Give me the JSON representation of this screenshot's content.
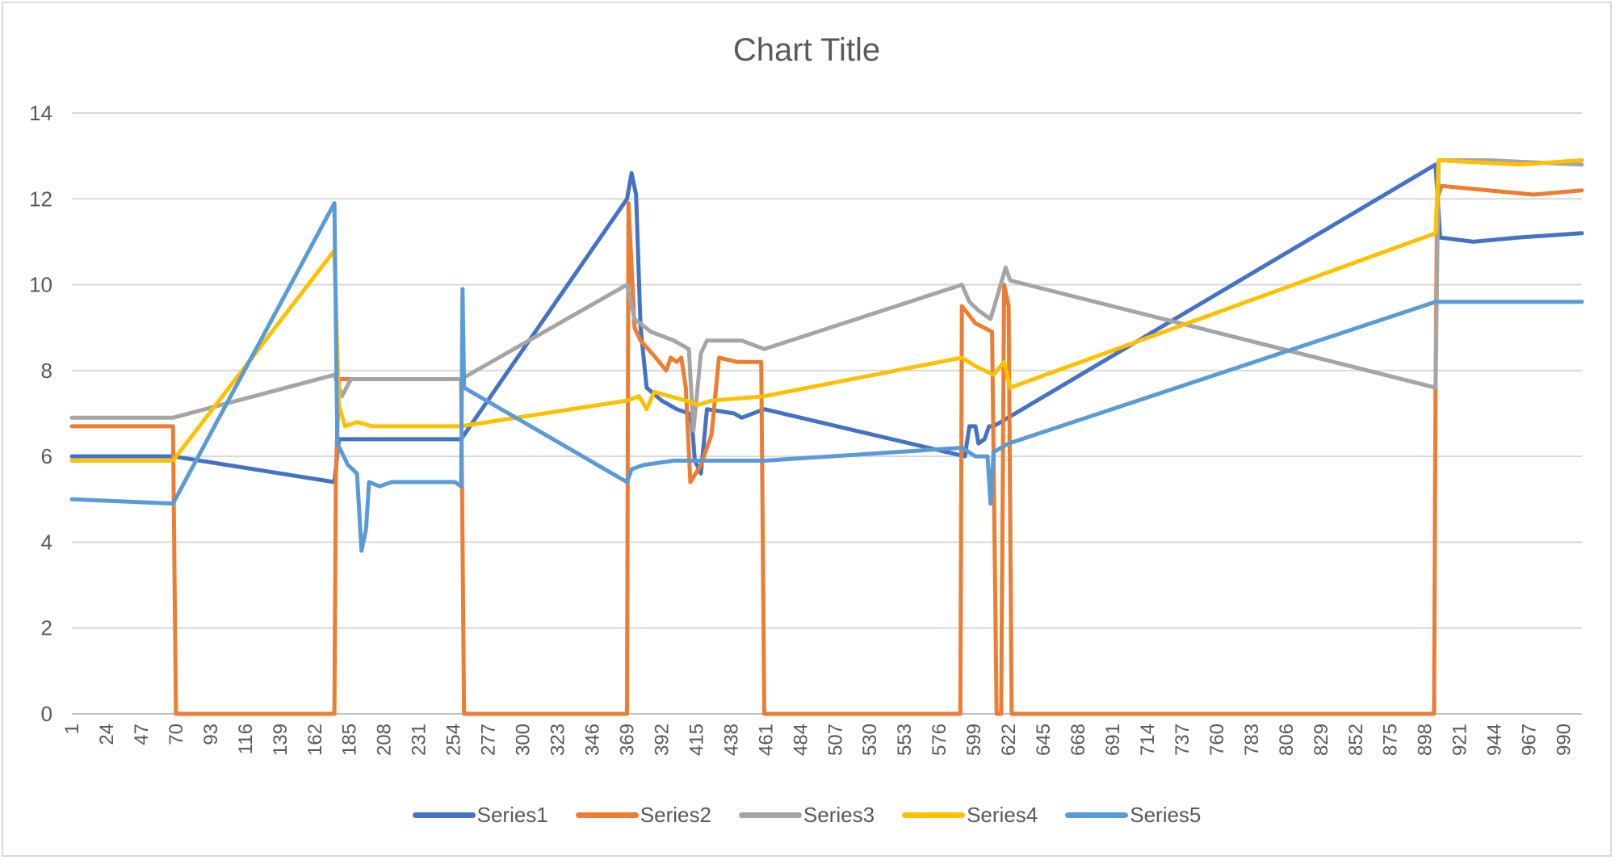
{
  "chart_data": {
    "type": "line",
    "title": "Chart Title",
    "xlabel": "",
    "ylabel": "",
    "xlim": [
      1,
      1002
    ],
    "ylim": [
      0,
      14
    ],
    "y_ticks": [
      0,
      2,
      4,
      6,
      8,
      10,
      12,
      14
    ],
    "x_tick_labels": [
      "1",
      "24",
      "47",
      "70",
      "93",
      "116",
      "139",
      "162",
      "185",
      "208",
      "231",
      "254",
      "277",
      "300",
      "323",
      "346",
      "369",
      "392",
      "415",
      "438",
      "461",
      "484",
      "507",
      "530",
      "553",
      "576",
      "599",
      "622",
      "645",
      "668",
      "691",
      "714",
      "737",
      "760",
      "783",
      "806",
      "829",
      "852",
      "875",
      "898",
      "921",
      "944",
      "967",
      "990"
    ],
    "grid": "horizontal",
    "legend_position": "bottom",
    "series": [
      {
        "name": "Series1",
        "color": "#4472C4",
        "points": [
          [
            1,
            6.0
          ],
          [
            68,
            6.0
          ],
          [
            175,
            5.4
          ],
          [
            178,
            6.4
          ],
          [
            259,
            6.4
          ],
          [
            369,
            12.0
          ],
          [
            372,
            12.6
          ],
          [
            375,
            12.1
          ],
          [
            378,
            9.0
          ],
          [
            382,
            7.6
          ],
          [
            392,
            7.3
          ],
          [
            402,
            7.1
          ],
          [
            410,
            7.0
          ],
          [
            412,
            6.8
          ],
          [
            414,
            5.9
          ],
          [
            418,
            5.6
          ],
          [
            422,
            7.1
          ],
          [
            440,
            7.0
          ],
          [
            445,
            6.9
          ],
          [
            460,
            7.1
          ],
          [
            593,
            6.0
          ],
          [
            596,
            6.7
          ],
          [
            600,
            6.7
          ],
          [
            602,
            6.3
          ],
          [
            606,
            6.4
          ],
          [
            609,
            6.7
          ],
          [
            612,
            6.7
          ],
          [
            905,
            12.8
          ],
          [
            908,
            11.1
          ],
          [
            930,
            11.0
          ],
          [
            960,
            11.1
          ],
          [
            1002,
            11.2
          ]
        ]
      },
      {
        "name": "Series2",
        "color": "#ED7D31",
        "points": [
          [
            1,
            6.7
          ],
          [
            68,
            6.7
          ],
          [
            70,
            0
          ],
          [
            175,
            0
          ],
          [
            176,
            5.5
          ],
          [
            178,
            7.8
          ],
          [
            259,
            7.8
          ],
          [
            261,
            0
          ],
          [
            369,
            0
          ],
          [
            370,
            11.9
          ],
          [
            374,
            9.0
          ],
          [
            378,
            8.7
          ],
          [
            388,
            8.3
          ],
          [
            395,
            8.0
          ],
          [
            398,
            8.3
          ],
          [
            402,
            8.2
          ],
          [
            405,
            8.3
          ],
          [
            408,
            7.6
          ],
          [
            411,
            5.4
          ],
          [
            418,
            5.8
          ],
          [
            425,
            6.5
          ],
          [
            430,
            8.3
          ],
          [
            442,
            8.2
          ],
          [
            458,
            8.2
          ],
          [
            460,
            0
          ],
          [
            590,
            0
          ],
          [
            591,
            9.5
          ],
          [
            600,
            9.1
          ],
          [
            611,
            8.9
          ],
          [
            614,
            0
          ],
          [
            617,
            0
          ],
          [
            619,
            10.0
          ],
          [
            622,
            9.5
          ],
          [
            624,
            0
          ],
          [
            904,
            0
          ],
          [
            905,
            7.6
          ],
          [
            906,
            12.0
          ],
          [
            909,
            12.3
          ],
          [
            940,
            12.2
          ],
          [
            970,
            12.1
          ],
          [
            1002,
            12.2
          ]
        ]
      },
      {
        "name": "Series3",
        "color": "#A5A5A5",
        "points": [
          [
            1,
            6.9
          ],
          [
            68,
            6.9
          ],
          [
            175,
            7.9
          ],
          [
            180,
            7.4
          ],
          [
            186,
            7.8
          ],
          [
            259,
            7.8
          ],
          [
            369,
            10.0
          ],
          [
            374,
            9.2
          ],
          [
            385,
            8.9
          ],
          [
            400,
            8.7
          ],
          [
            410,
            8.5
          ],
          [
            413,
            6.6
          ],
          [
            418,
            8.4
          ],
          [
            422,
            8.7
          ],
          [
            445,
            8.7
          ],
          [
            460,
            8.5
          ],
          [
            591,
            10.0
          ],
          [
            596,
            9.6
          ],
          [
            602,
            9.4
          ],
          [
            610,
            9.2
          ],
          [
            620,
            10.4
          ],
          [
            623,
            10.1
          ],
          [
            905,
            7.6
          ],
          [
            907,
            12.9
          ],
          [
            940,
            12.9
          ],
          [
            1002,
            12.8
          ]
        ]
      },
      {
        "name": "Series4",
        "color": "#FFC000",
        "points": [
          [
            1,
            5.9
          ],
          [
            68,
            5.9
          ],
          [
            175,
            10.8
          ],
          [
            178,
            7.2
          ],
          [
            182,
            6.7
          ],
          [
            190,
            6.8
          ],
          [
            200,
            6.7
          ],
          [
            259,
            6.7
          ],
          [
            369,
            7.3
          ],
          [
            377,
            7.4
          ],
          [
            382,
            7.1
          ],
          [
            387,
            7.5
          ],
          [
            408,
            7.3
          ],
          [
            416,
            7.2
          ],
          [
            425,
            7.3
          ],
          [
            460,
            7.4
          ],
          [
            591,
            8.3
          ],
          [
            600,
            8.1
          ],
          [
            612,
            7.9
          ],
          [
            619,
            8.2
          ],
          [
            623,
            7.6
          ],
          [
            905,
            11.2
          ],
          [
            907,
            12.9
          ],
          [
            960,
            12.8
          ],
          [
            1002,
            12.9
          ]
        ]
      },
      {
        "name": "Series5",
        "color": "#5B9BD5",
        "points": [
          [
            1,
            5.0
          ],
          [
            68,
            4.9
          ],
          [
            175,
            11.9
          ],
          [
            177,
            6.3
          ],
          [
            184,
            5.8
          ],
          [
            190,
            5.6
          ],
          [
            193,
            3.8
          ],
          [
            196,
            4.3
          ],
          [
            198,
            5.4
          ],
          [
            205,
            5.3
          ],
          [
            213,
            5.4
          ],
          [
            255,
            5.4
          ],
          [
            259,
            5.3
          ],
          [
            260,
            9.9
          ],
          [
            261,
            7.6
          ],
          [
            369,
            5.4
          ],
          [
            372,
            5.7
          ],
          [
            380,
            5.8
          ],
          [
            400,
            5.9
          ],
          [
            430,
            5.9
          ],
          [
            460,
            5.9
          ],
          [
            591,
            6.2
          ],
          [
            600,
            6.0
          ],
          [
            608,
            6.0
          ],
          [
            610,
            4.9
          ],
          [
            612,
            6.1
          ],
          [
            622,
            6.3
          ],
          [
            905,
            9.6
          ],
          [
            940,
            9.6
          ],
          [
            1002,
            9.6
          ]
        ]
      }
    ]
  }
}
